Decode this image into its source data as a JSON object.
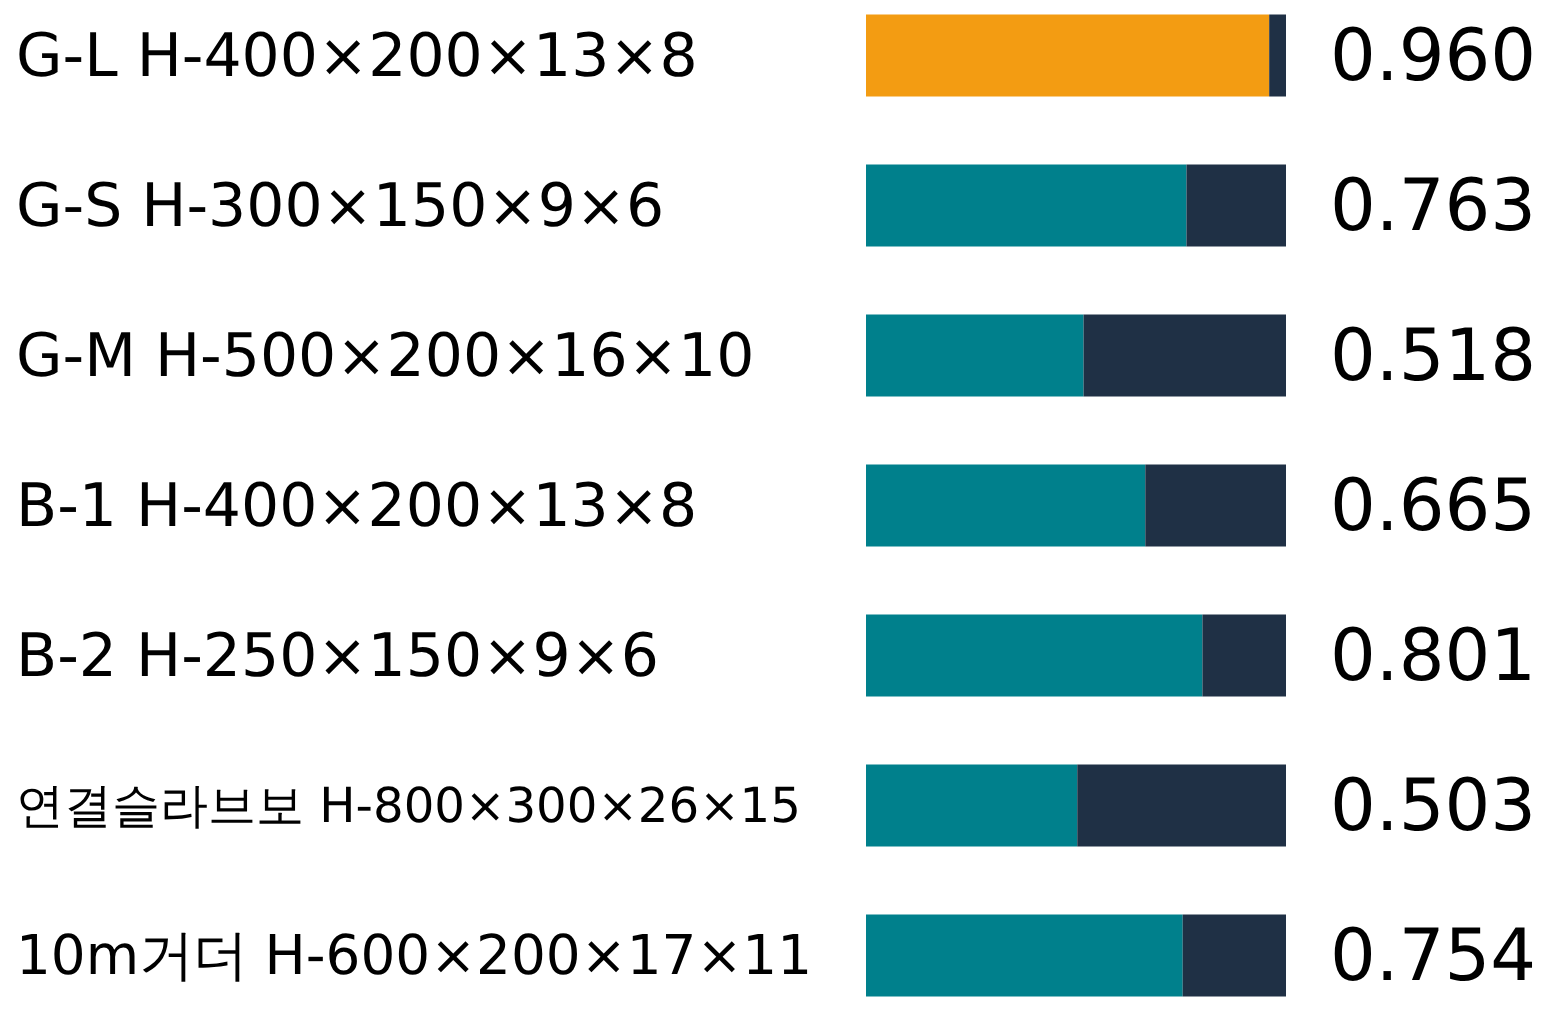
{
  "chart_data": {
    "type": "bar",
    "orientation": "horizontal",
    "stacked": true,
    "categories": [
      "G-L H-400×200×13×8",
      "G-S H-300×150×9×6",
      "G-M H-500×200×16×10",
      "B-1 H-400×200×13×8",
      "B-2 H-250×150×9×6",
      "연결슬라브보 H-800×300×26×15",
      "10m거더 H-600×200×17×11"
    ],
    "series": [
      {
        "colors": [
          "#f39c12",
          "#00808c",
          "#00808c",
          "#00808c",
          "#00808c",
          "#00808c",
          "#00808c"
        ],
        "values": [
          0.96,
          0.763,
          0.518,
          0.665,
          0.801,
          0.503,
          0.754
        ],
        "value_labels": [
          "0.960",
          "0.763",
          "0.518",
          "0.665",
          "0.801",
          "0.503",
          "0.754"
        ]
      },
      {
        "color": "#1f3045",
        "values": [
          0.04,
          0.237,
          0.482,
          0.335,
          0.199,
          0.497,
          0.246
        ]
      }
    ],
    "xlim": [
      0,
      1
    ],
    "grid": false,
    "legend": false
  }
}
